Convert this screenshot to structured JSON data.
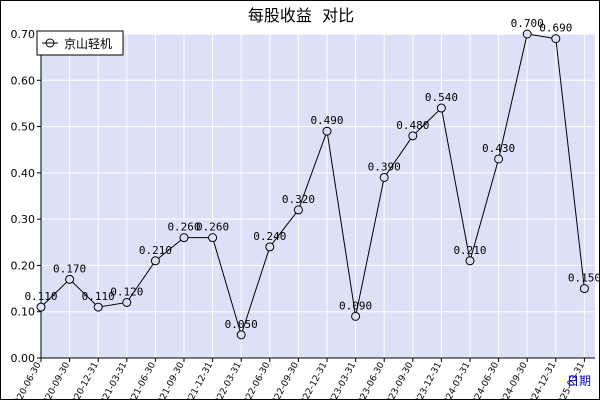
{
  "chart_data": {
    "type": "line",
    "title": "每股收益  对比",
    "xlabel": "日期",
    "ylabel": "",
    "ylim": [
      0,
      0.7
    ],
    "yticks": [
      "0.00",
      "0.10",
      "0.20",
      "0.30",
      "0.40",
      "0.50",
      "0.60",
      "0.70"
    ],
    "grid": true,
    "legend_position": "top-left",
    "colors": {
      "plot_background": "#dde1f7",
      "grid": "#ffffff",
      "series_line": "#000000",
      "title": "#000000"
    },
    "categories": [
      "2020-06-30",
      "2020-09-30",
      "2020-12-31",
      "2021-03-31",
      "2021-06-30",
      "2021-09-30",
      "2021-12-31",
      "2022-03-31",
      "2022-06-30",
      "2022-09-30",
      "2022-12-31",
      "2023-03-31",
      "2023-06-30",
      "2023-09-30",
      "2023-12-31",
      "2024-03-31",
      "2024-06-30",
      "2024-09-30",
      "2024-12-31",
      "2025-03-31"
    ],
    "series": [
      {
        "name": "京山轻机",
        "values": [
          0.11,
          0.17,
          0.11,
          0.12,
          0.21,
          0.26,
          0.26,
          0.05,
          0.24,
          0.32,
          0.49,
          0.09,
          0.39,
          0.48,
          0.54,
          0.21,
          0.43,
          0.7,
          0.69,
          0.15
        ],
        "labels": [
          "0.110",
          "0.170",
          "0.110",
          "0.120",
          "0.210",
          "0.260",
          "0.260",
          "0.050",
          "0.240",
          "0.320",
          "0.490",
          "0.090",
          "0.390",
          "0.480",
          "0.540",
          "0.210",
          "0.430",
          "0.700",
          "0.690",
          "0.150"
        ]
      }
    ]
  }
}
